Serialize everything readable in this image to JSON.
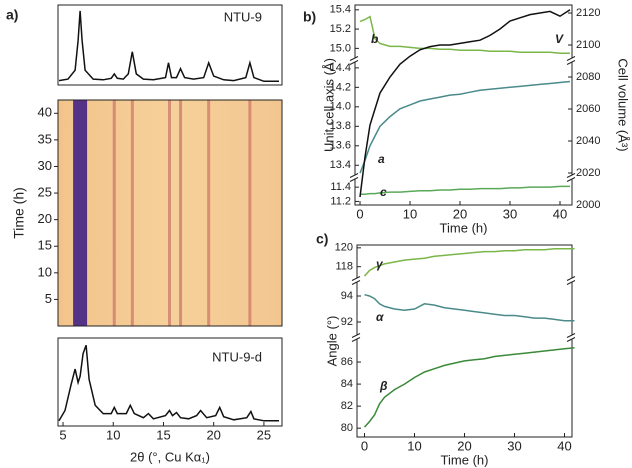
{
  "chart_data": [
    {
      "type": "line",
      "panel_label": "a)",
      "label": "NTU-9",
      "color": "#111111",
      "xlim": [
        4.5,
        26.8
      ],
      "ylim": [
        0,
        1.08
      ],
      "x": [
        4.6,
        5.5,
        6.2,
        6.5,
        6.7,
        6.9,
        7.2,
        8,
        9,
        9.8,
        10.1,
        10.4,
        11,
        11.5,
        11.9,
        12.3,
        13,
        14,
        15.2,
        15.5,
        15.8,
        16.3,
        16.7,
        17.1,
        18,
        19,
        19.5,
        20,
        21,
        22,
        23.2,
        23.6,
        24,
        25,
        26.5
      ],
      "values": [
        0.06,
        0.08,
        0.2,
        0.6,
        1.0,
        0.6,
        0.2,
        0.08,
        0.07,
        0.09,
        0.15,
        0.09,
        0.08,
        0.15,
        0.45,
        0.15,
        0.08,
        0.07,
        0.1,
        0.3,
        0.1,
        0.1,
        0.22,
        0.1,
        0.08,
        0.1,
        0.3,
        0.12,
        0.07,
        0.06,
        0.1,
        0.3,
        0.1,
        0.05,
        0.05
      ]
    },
    {
      "type": "heatmap",
      "y_label": "Time (h)",
      "xlim": [
        4.5,
        26.8
      ],
      "ylim": [
        0,
        42.5
      ],
      "yticks": [
        5,
        10,
        15,
        20,
        25,
        30,
        35,
        40
      ],
      "streaks": [
        6.7,
        10.1,
        11.9,
        15.6,
        16.7,
        19.5,
        23.6
      ]
    },
    {
      "type": "line",
      "label": "NTU-9-d",
      "color": "#111111",
      "x_label": "2θ (°, Cu Kα₁)",
      "xlim": [
        4.5,
        26.8
      ],
      "ylim": [
        0,
        0.85
      ],
      "xticks": [
        5,
        10,
        15,
        20,
        25
      ],
      "x": [
        4.6,
        5.2,
        5.8,
        6.2,
        6.5,
        6.7,
        7.0,
        7.3,
        7.6,
        8.2,
        9,
        9.8,
        10.1,
        10.4,
        11.3,
        11.7,
        12.1,
        13,
        13.5,
        14,
        15.2,
        15.6,
        15.9,
        16.3,
        16.7,
        17.5,
        18.3,
        18.7,
        19.3,
        20.2,
        20.6,
        21,
        22,
        23.3,
        23.7,
        24,
        25,
        26.5
      ],
      "values": [
        0.05,
        0.15,
        0.4,
        0.55,
        0.42,
        0.48,
        0.7,
        0.78,
        0.45,
        0.2,
        0.12,
        0.12,
        0.18,
        0.12,
        0.12,
        0.2,
        0.12,
        0.08,
        0.12,
        0.07,
        0.1,
        0.15,
        0.1,
        0.13,
        0.08,
        0.07,
        0.1,
        0.15,
        0.08,
        0.1,
        0.18,
        0.09,
        0.06,
        0.08,
        0.14,
        0.07,
        0.05,
        0.05
      ]
    },
    {
      "type": "broken",
      "panel_label": "b)",
      "x_label": "Time (h)",
      "y_label": "Unit cell axis (Å)",
      "y2_label": "Cell volume (Å³)",
      "xlim": [
        -1,
        42.4
      ],
      "xticks": [
        0,
        10,
        20,
        30,
        40
      ],
      "y_segments": [
        {
          "ylim": [
            14.9,
            15.45
          ],
          "yticks": [
            {
              "value": 15,
              "label": "15.0"
            },
            15.2,
            15.4
          ]
        },
        {
          "ylim": [
            13.3,
            14.45
          ],
          "yticks": [
            13.4,
            13.6,
            13.8,
            {
              "value": 14,
              "label": "14.0"
            },
            14.2,
            14.4
          ]
        },
        {
          "ylim": [
            11.15,
            11.5
          ],
          "yticks": [
            11.2,
            11.4
          ]
        }
      ],
      "y2lim": [
        2000,
        2125
      ],
      "y2ticks": [
        2000,
        2020,
        2040,
        2060,
        2080,
        2100,
        2120
      ],
      "x": [
        0,
        1,
        2,
        3,
        4,
        6,
        8,
        10,
        12,
        14,
        16,
        18,
        20,
        22,
        24,
        26,
        28,
        30,
        32,
        34,
        36,
        38,
        40,
        42
      ],
      "series": [
        {
          "name": "b",
          "color": "#7ab648",
          "values": [
            15.28,
            15.3,
            15.33,
            15.1,
            15.05,
            15.02,
            15.02,
            15.01,
            15.0,
            15.0,
            14.99,
            14.99,
            14.98,
            14.98,
            14.98,
            14.97,
            14.97,
            14.97,
            14.96,
            14.96,
            14.96,
            14.96,
            14.95,
            14.95
          ]
        },
        {
          "name": "a",
          "color": "#4a8a8a",
          "values": [
            13.32,
            13.45,
            13.6,
            13.7,
            13.8,
            13.9,
            13.98,
            14.02,
            14.06,
            14.08,
            14.1,
            14.12,
            14.13,
            14.15,
            14.17,
            14.18,
            14.19,
            14.2,
            14.21,
            14.22,
            14.23,
            14.24,
            14.25,
            14.26
          ]
        },
        {
          "name": "c",
          "color": "#5aa85a",
          "values": [
            11.3,
            11.3,
            11.31,
            11.31,
            11.32,
            11.33,
            11.33,
            11.34,
            11.35,
            11.35,
            11.36,
            11.36,
            11.37,
            11.37,
            11.38,
            11.38,
            11.38,
            11.39,
            11.39,
            11.4,
            11.4,
            11.4,
            11.41,
            11.41
          ]
        },
        {
          "name": "V",
          "color": "#111111",
          "axis": "y2",
          "values": [
            2005,
            2030,
            2050,
            2060,
            2070,
            2080,
            2088,
            2093,
            2097,
            2099,
            2100,
            2100,
            2101,
            2102,
            2103,
            2106,
            2110,
            2115,
            2117,
            2119,
            2120,
            2121,
            2118,
            2122
          ]
        }
      ]
    },
    {
      "type": "broken",
      "panel_label": "c)",
      "x_label": "Time (h)",
      "y_label": "Angle (°)",
      "xlim": [
        -1.5,
        41.5
      ],
      "xticks": [
        0,
        10,
        20,
        30,
        40
      ],
      "y_segments": [
        {
          "ylim": [
            116.8,
            120.3
          ],
          "yticks": [
            118,
            120
          ]
        },
        {
          "ylim": [
            91,
            95
          ],
          "yticks": [
            92,
            94
          ]
        },
        {
          "ylim": [
            79.2,
            88
          ],
          "yticks": [
            80,
            82,
            84,
            86
          ]
        }
      ],
      "x": [
        0,
        1,
        2,
        3,
        4,
        6,
        8,
        10,
        12,
        14,
        16,
        18,
        20,
        22,
        24,
        26,
        28,
        30,
        32,
        34,
        36,
        38,
        40,
        42
      ],
      "series": [
        {
          "name": "γ",
          "color": "#7ab648",
          "values": [
            117.0,
            117.6,
            117.9,
            118.1,
            118.3,
            118.5,
            118.7,
            118.8,
            118.9,
            119.1,
            119.2,
            119.3,
            119.4,
            119.5,
            119.6,
            119.6,
            119.7,
            119.7,
            119.8,
            119.8,
            119.8,
            119.9,
            119.9,
            119.9
          ]
        },
        {
          "name": "α",
          "color": "#4a8a8a",
          "values": [
            94.1,
            94.0,
            93.8,
            93.4,
            93.2,
            93.0,
            92.9,
            93.0,
            93.4,
            93.3,
            93.1,
            93.0,
            92.9,
            92.8,
            92.7,
            92.6,
            92.5,
            92.5,
            92.4,
            92.3,
            92.3,
            92.2,
            92.1,
            92.1
          ]
        },
        {
          "name": "β",
          "color": "#3a8a3a",
          "values": [
            80.1,
            80.6,
            81.2,
            82.2,
            82.8,
            83.5,
            84.0,
            84.6,
            85.1,
            85.4,
            85.7,
            85.9,
            86.1,
            86.2,
            86.3,
            86.5,
            86.6,
            86.7,
            86.8,
            86.9,
            87.0,
            87.1,
            87.2,
            87.3
          ]
        }
      ]
    }
  ]
}
